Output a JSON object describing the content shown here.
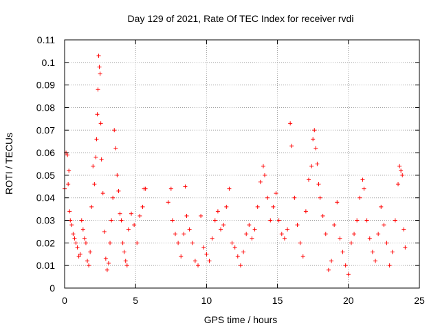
{
  "chart_data": {
    "type": "scatter",
    "title": "Day 129 of 2021, Rate Of TEC Index for receiver rvdi",
    "xlabel": "GPS time / hours",
    "ylabel": "ROTI / TECUs",
    "xlim": [
      0,
      25
    ],
    "ylim": [
      0,
      0.11
    ],
    "x_ticks": [
      0,
      5,
      10,
      15,
      20,
      25
    ],
    "x_tick_labels": [
      "0",
      "5",
      "10",
      "15",
      "20",
      "25"
    ],
    "y_ticks": [
      0,
      0.01,
      0.02,
      0.03,
      0.04,
      0.05,
      0.06,
      0.07,
      0.08,
      0.09,
      0.1,
      0.11
    ],
    "y_tick_labels": [
      "0",
      "0.01",
      "0.02",
      "0.03",
      "0.04",
      "0.05",
      "0.06",
      "0.07",
      "0.08",
      "0.09",
      "0.1",
      "0.11"
    ],
    "grid": true,
    "marker": "plus",
    "colors": {
      "points": "#ff0000",
      "grid": "#a0a0a0",
      "axes": "#000000"
    },
    "points": [
      [
        0.0,
        0.044
      ],
      [
        0.1,
        0.06
      ],
      [
        0.2,
        0.059
      ],
      [
        0.25,
        0.046
      ],
      [
        0.3,
        0.052
      ],
      [
        0.35,
        0.034
      ],
      [
        0.4,
        0.03
      ],
      [
        0.5,
        0.028
      ],
      [
        0.6,
        0.024
      ],
      [
        0.7,
        0.022
      ],
      [
        0.8,
        0.02
      ],
      [
        0.9,
        0.018
      ],
      [
        1.0,
        0.014
      ],
      [
        1.1,
        0.015
      ],
      [
        1.2,
        0.03
      ],
      [
        1.3,
        0.026
      ],
      [
        1.4,
        0.022
      ],
      [
        1.5,
        0.02
      ],
      [
        1.6,
        0.012
      ],
      [
        1.7,
        0.01
      ],
      [
        1.8,
        0.016
      ],
      [
        1.9,
        0.036
      ],
      [
        2.0,
        0.054
      ],
      [
        2.1,
        0.046
      ],
      [
        2.2,
        0.058
      ],
      [
        2.25,
        0.066
      ],
      [
        2.3,
        0.077
      ],
      [
        2.35,
        0.088
      ],
      [
        2.4,
        0.103
      ],
      [
        2.45,
        0.098
      ],
      [
        2.5,
        0.095
      ],
      [
        2.55,
        0.073
      ],
      [
        2.6,
        0.057
      ],
      [
        2.7,
        0.042
      ],
      [
        2.8,
        0.025
      ],
      [
        2.9,
        0.013
      ],
      [
        3.0,
        0.008
      ],
      [
        3.1,
        0.011
      ],
      [
        3.2,
        0.02
      ],
      [
        3.3,
        0.03
      ],
      [
        3.4,
        0.04
      ],
      [
        3.5,
        0.07
      ],
      [
        3.6,
        0.062
      ],
      [
        3.7,
        0.05
      ],
      [
        3.8,
        0.043
      ],
      [
        3.9,
        0.033
      ],
      [
        4.0,
        0.03
      ],
      [
        4.1,
        0.02
      ],
      [
        4.2,
        0.016
      ],
      [
        4.3,
        0.012
      ],
      [
        4.4,
        0.01
      ],
      [
        4.5,
        0.026
      ],
      [
        4.7,
        0.033
      ],
      [
        4.9,
        0.028
      ],
      [
        5.1,
        0.02
      ],
      [
        5.3,
        0.032
      ],
      [
        5.5,
        0.036
      ],
      [
        5.6,
        0.044
      ],
      [
        5.7,
        0.044
      ],
      [
        7.3,
        0.038
      ],
      [
        7.5,
        0.044
      ],
      [
        7.6,
        0.03
      ],
      [
        7.8,
        0.024
      ],
      [
        8.0,
        0.02
      ],
      [
        8.2,
        0.014
      ],
      [
        8.4,
        0.024
      ],
      [
        8.5,
        0.045
      ],
      [
        8.6,
        0.032
      ],
      [
        8.8,
        0.026
      ],
      [
        9.0,
        0.02
      ],
      [
        9.2,
        0.012
      ],
      [
        9.4,
        0.01
      ],
      [
        9.6,
        0.032
      ],
      [
        9.8,
        0.018
      ],
      [
        10.0,
        0.015
      ],
      [
        10.2,
        0.012
      ],
      [
        10.4,
        0.022
      ],
      [
        10.6,
        0.03
      ],
      [
        10.8,
        0.034
      ],
      [
        11.0,
        0.026
      ],
      [
        11.2,
        0.028
      ],
      [
        11.4,
        0.036
      ],
      [
        11.6,
        0.044
      ],
      [
        11.8,
        0.02
      ],
      [
        12.0,
        0.018
      ],
      [
        12.2,
        0.014
      ],
      [
        12.4,
        0.01
      ],
      [
        12.6,
        0.016
      ],
      [
        12.8,
        0.024
      ],
      [
        13.0,
        0.028
      ],
      [
        13.2,
        0.022
      ],
      [
        13.4,
        0.026
      ],
      [
        13.6,
        0.036
      ],
      [
        13.8,
        0.047
      ],
      [
        14.0,
        0.054
      ],
      [
        14.1,
        0.05
      ],
      [
        14.3,
        0.04
      ],
      [
        14.5,
        0.03
      ],
      [
        14.7,
        0.036
      ],
      [
        14.9,
        0.042
      ],
      [
        15.1,
        0.03
      ],
      [
        15.3,
        0.024
      ],
      [
        15.5,
        0.022
      ],
      [
        15.7,
        0.026
      ],
      [
        15.9,
        0.073
      ],
      [
        16.0,
        0.063
      ],
      [
        16.2,
        0.04
      ],
      [
        16.4,
        0.028
      ],
      [
        16.6,
        0.02
      ],
      [
        16.8,
        0.014
      ],
      [
        17.0,
        0.034
      ],
      [
        17.2,
        0.048
      ],
      [
        17.4,
        0.054
      ],
      [
        17.5,
        0.066
      ],
      [
        17.6,
        0.07
      ],
      [
        17.7,
        0.062
      ],
      [
        17.8,
        0.055
      ],
      [
        17.9,
        0.046
      ],
      [
        18.0,
        0.04
      ],
      [
        18.2,
        0.032
      ],
      [
        18.4,
        0.024
      ],
      [
        18.6,
        0.008
      ],
      [
        18.8,
        0.012
      ],
      [
        19.0,
        0.028
      ],
      [
        19.2,
        0.038
      ],
      [
        19.4,
        0.022
      ],
      [
        19.6,
        0.016
      ],
      [
        19.8,
        0.01
      ],
      [
        20.0,
        0.006
      ],
      [
        20.2,
        0.02
      ],
      [
        20.4,
        0.024
      ],
      [
        20.6,
        0.03
      ],
      [
        20.8,
        0.04
      ],
      [
        21.0,
        0.048
      ],
      [
        21.1,
        0.044
      ],
      [
        21.3,
        0.03
      ],
      [
        21.5,
        0.022
      ],
      [
        21.7,
        0.016
      ],
      [
        21.9,
        0.012
      ],
      [
        22.1,
        0.024
      ],
      [
        22.3,
        0.036
      ],
      [
        22.5,
        0.028
      ],
      [
        22.7,
        0.02
      ],
      [
        22.9,
        0.01
      ],
      [
        23.1,
        0.016
      ],
      [
        23.3,
        0.03
      ],
      [
        23.5,
        0.046
      ],
      [
        23.6,
        0.054
      ],
      [
        23.7,
        0.052
      ],
      [
        23.8,
        0.05
      ],
      [
        23.9,
        0.026
      ],
      [
        24.0,
        0.018
      ]
    ]
  }
}
